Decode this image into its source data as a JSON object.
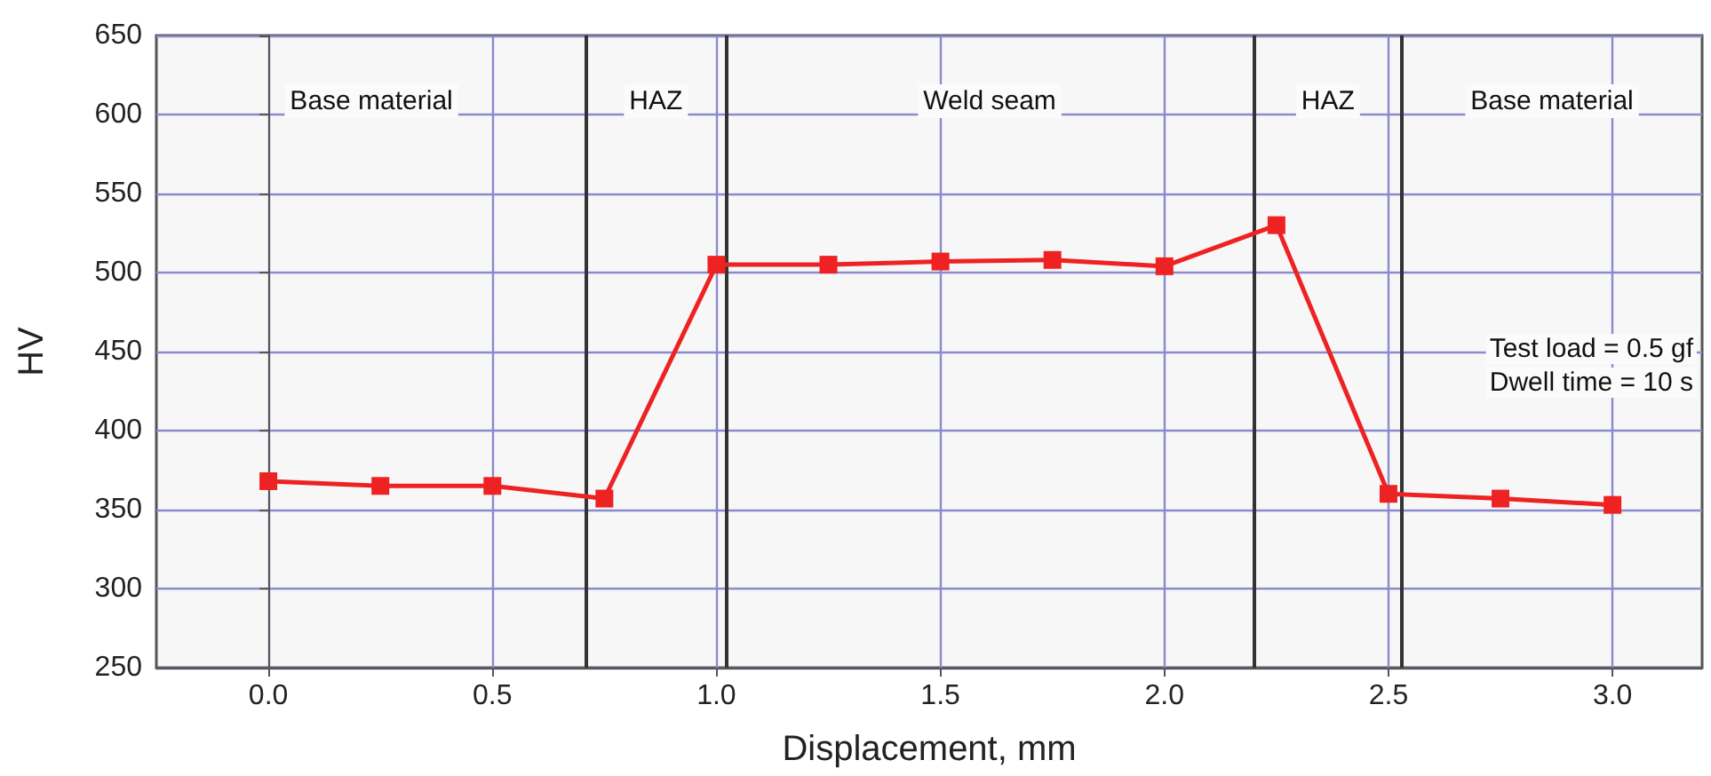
{
  "chart_data": {
    "type": "line",
    "xlabel": "Displacement, mm",
    "ylabel": "HV",
    "x": [
      0,
      0.25,
      0.5,
      0.75,
      1.0,
      1.25,
      1.5,
      1.75,
      2.0,
      2.25,
      2.5,
      2.75,
      3.0
    ],
    "series": [
      {
        "color": "#ee2222",
        "values": [
          368,
          365,
          365,
          357,
          505,
          505,
          507,
          508,
          504,
          530,
          360,
          357,
          353
        ]
      }
    ],
    "xlim": [
      -0.25,
      3.2
    ],
    "xticks": [
      {
        "value": 0,
        "label": "0.0"
      },
      0.5,
      {
        "value": 1,
        "label": "1.0"
      },
      1.5,
      {
        "value": 2,
        "label": "2.0"
      },
      2.5,
      {
        "value": 3,
        "label": "3.0"
      }
    ],
    "ylim": [
      250,
      650
    ],
    "yticks": [
      250,
      300,
      350,
      400,
      450,
      500,
      550,
      600,
      650
    ],
    "grid": true,
    "marker": "square",
    "line_style": "solid",
    "ref_lines": [
      {
        "axis": "x",
        "value": 0.71,
        "color": "#333333"
      },
      {
        "axis": "x",
        "value": 1.02,
        "color": "#333333"
      },
      {
        "axis": "x",
        "value": 2.2,
        "color": "#333333"
      },
      {
        "axis": "x",
        "value": 2.53,
        "color": "#333333"
      }
    ],
    "annotations": [
      "Base material",
      "HAZ",
      "Weld seam",
      "HAZ",
      "Base material",
      "Test load = 0.5 gf",
      "Dwell time = 10 s"
    ]
  }
}
